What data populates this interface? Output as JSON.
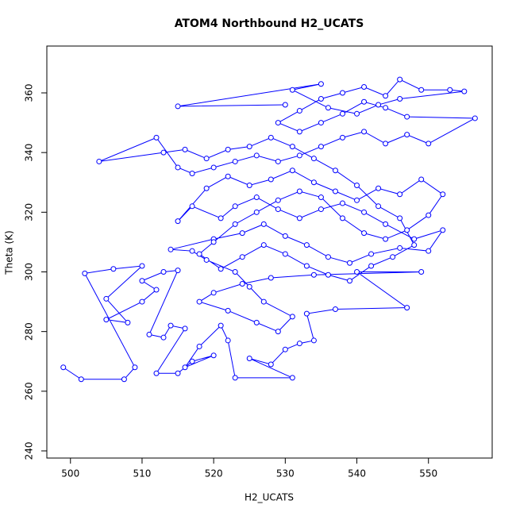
{
  "chart_data": {
    "type": "line",
    "title": "ATOM4 Northbound H2_UCATS",
    "x_label": "H2_UCATS",
    "y_label": "Theta (K)",
    "x": [
      499,
      501.5,
      507.5,
      509,
      502,
      506,
      510,
      505,
      508,
      505,
      510,
      512,
      510,
      513,
      515,
      511,
      513,
      514,
      516,
      512,
      515,
      517,
      520,
      516,
      518,
      521,
      522,
      523,
      531,
      525,
      528,
      530,
      532,
      534,
      533,
      537,
      547,
      540,
      549,
      534,
      528,
      524,
      520,
      518,
      522,
      526,
      529,
      531,
      527,
      525,
      523,
      519,
      517,
      514,
      520,
      524,
      527,
      530,
      533,
      536,
      539,
      542,
      546,
      550,
      552,
      548,
      544,
      541,
      538,
      535,
      532,
      529,
      526,
      523,
      521,
      517,
      515,
      519,
      522,
      525,
      528,
      531,
      534,
      537,
      540,
      543,
      546,
      549,
      552,
      550,
      547,
      544,
      541,
      538,
      535,
      532,
      529,
      526,
      523,
      520,
      518,
      521,
      524,
      527,
      530,
      533,
      536,
      539,
      542,
      545,
      548,
      546,
      543,
      540,
      537,
      534,
      531,
      528,
      525,
      522,
      519,
      516,
      513,
      504,
      512,
      515,
      517,
      520,
      523,
      526,
      529,
      532,
      535,
      538,
      541,
      544,
      547,
      550,
      556.5,
      547,
      544,
      541,
      538,
      535,
      532,
      529,
      532,
      535,
      538,
      541,
      544,
      546,
      549,
      553,
      555,
      546,
      543,
      540,
      536,
      531,
      535,
      515,
      530
    ],
    "series": [
      {
        "color": "#0000ff",
        "values": [
          268,
          264,
          264,
          268,
          299.5,
          301,
          302,
          291,
          283,
          284,
          290,
          294,
          297,
          300,
          300.5,
          279,
          278,
          282,
          281,
          266,
          266,
          270,
          272,
          268,
          275,
          282,
          277,
          264.5,
          264.5,
          271,
          269,
          274,
          276,
          277,
          286,
          287.5,
          288,
          300,
          300,
          299,
          298,
          296,
          293,
          290,
          287,
          283,
          280,
          285,
          290,
          295,
          300,
          304,
          307,
          307.5,
          311,
          313,
          316,
          312,
          309,
          305,
          303,
          306,
          308,
          307,
          314,
          311,
          316,
          320,
          323,
          321,
          318,
          321,
          325,
          322,
          318,
          322,
          317,
          328,
          332,
          329,
          331,
          334,
          330,
          327,
          324,
          328,
          326,
          331,
          326,
          319,
          314,
          311,
          313,
          318,
          325,
          327,
          324,
          320,
          316,
          310,
          306,
          301,
          305,
          309,
          306,
          302,
          299,
          297,
          302,
          305,
          309,
          318,
          322,
          329,
          334,
          338,
          342,
          345,
          342,
          341,
          338,
          341,
          340,
          337,
          345,
          335,
          333,
          335,
          337,
          339,
          337,
          339,
          342,
          345,
          347,
          343,
          346,
          343,
          351.5,
          352,
          355,
          357,
          353,
          350,
          347,
          350,
          354,
          358,
          360,
          362,
          359,
          364.5,
          361,
          361,
          360.5,
          358,
          356,
          353,
          355,
          361,
          363,
          355.5,
          356
        ]
      }
    ],
    "xlim": [
      496.7,
      558.9
    ],
    "ylim": [
      237.6,
      375.7
    ],
    "xticks": [
      500,
      510,
      520,
      530,
      540,
      550
    ],
    "yticks": [
      240,
      260,
      280,
      300,
      320,
      340,
      360
    ]
  }
}
